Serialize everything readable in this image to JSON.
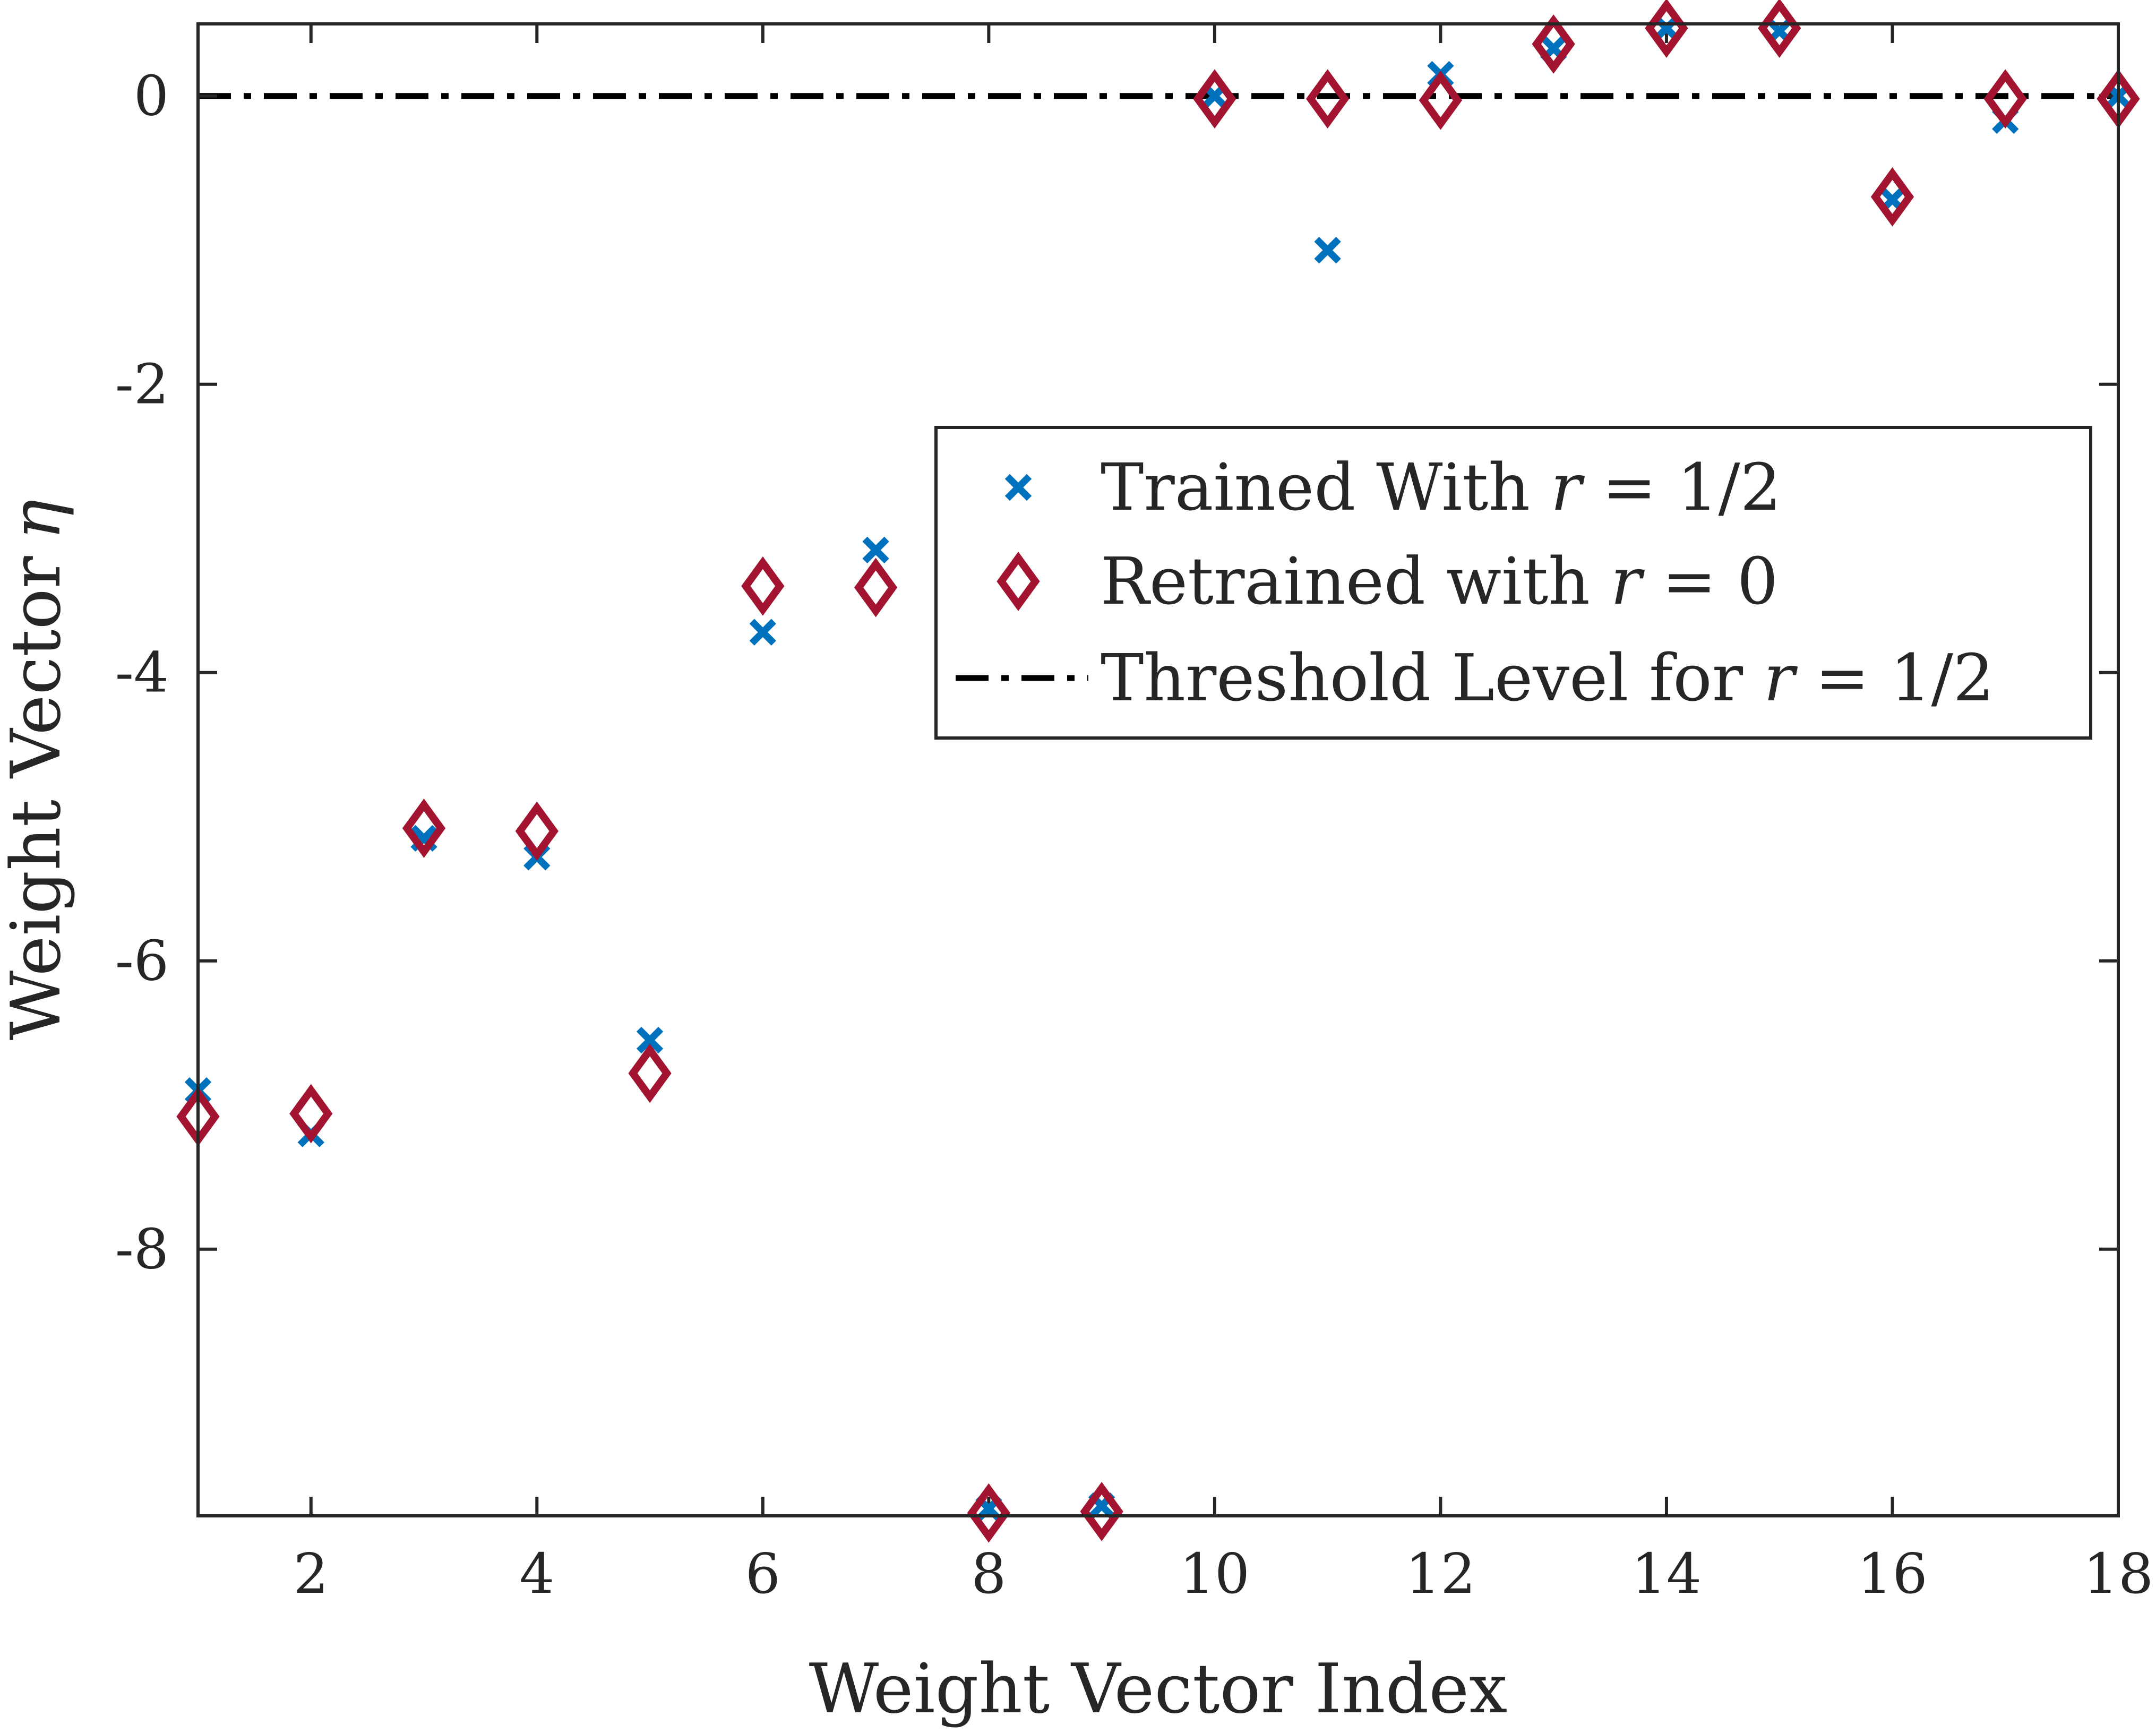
{
  "chart_data": {
    "type": "scatter",
    "xlabel": "Weight Vector Index",
    "ylabel": "Weight Vector",
    "ylabel_symbol": "η",
    "xlim": [
      1,
      18
    ],
    "ylim": [
      -9.85,
      0.5
    ],
    "x_ticks": [
      2,
      4,
      6,
      8,
      10,
      12,
      14,
      16,
      18
    ],
    "y_ticks": [
      0,
      -2,
      -4,
      -6,
      -8
    ],
    "x_tick_labels": [
      "2",
      "4",
      "6",
      "8",
      "10",
      "12",
      "14",
      "16",
      "18"
    ],
    "y_tick_labels": [
      "0",
      "-2",
      "-4",
      "-6",
      "-8"
    ],
    "grid": false,
    "legend_position": "center-right",
    "series": [
      {
        "name": "Trained With r = 1/2",
        "marker": "x",
        "color": "#0072BD",
        "x": [
          1,
          2,
          3,
          4,
          5,
          6,
          7,
          8,
          9,
          10,
          11,
          12,
          13,
          14,
          15,
          16,
          17,
          18
        ],
        "y": [
          -6.9,
          -7.2,
          -5.15,
          -5.28,
          -6.55,
          -3.72,
          -3.15,
          -9.8,
          -9.78,
          0.0,
          -1.07,
          0.15,
          0.33,
          0.47,
          0.45,
          -0.72,
          -0.17,
          0.0
        ]
      },
      {
        "name": "Retrained with r = 0",
        "marker": "diamond",
        "color": "#A2142F",
        "x": [
          1,
          2,
          3,
          4,
          5,
          6,
          7,
          8,
          9,
          10,
          11,
          12,
          13,
          14,
          15,
          16,
          17,
          18
        ],
        "y": [
          -7.08,
          -7.06,
          -5.08,
          -5.1,
          -6.78,
          -3.4,
          -3.41,
          -9.83,
          -9.82,
          -0.02,
          -0.02,
          -0.03,
          0.36,
          0.47,
          0.47,
          -0.7,
          -0.02,
          -0.02
        ]
      }
    ],
    "threshold": {
      "name": "Threshold Level for r = 1/2",
      "y": 0,
      "style": "dash-dot",
      "color": "#000000"
    },
    "legend": [
      {
        "prefix": "Trained With ",
        "var": "r",
        "suffix": " = 1/2"
      },
      {
        "prefix": "Retrained with ",
        "var": "r",
        "suffix": " = 0"
      },
      {
        "prefix": "Threshold Level for ",
        "var": "r",
        "suffix": " = 1/2"
      }
    ]
  }
}
